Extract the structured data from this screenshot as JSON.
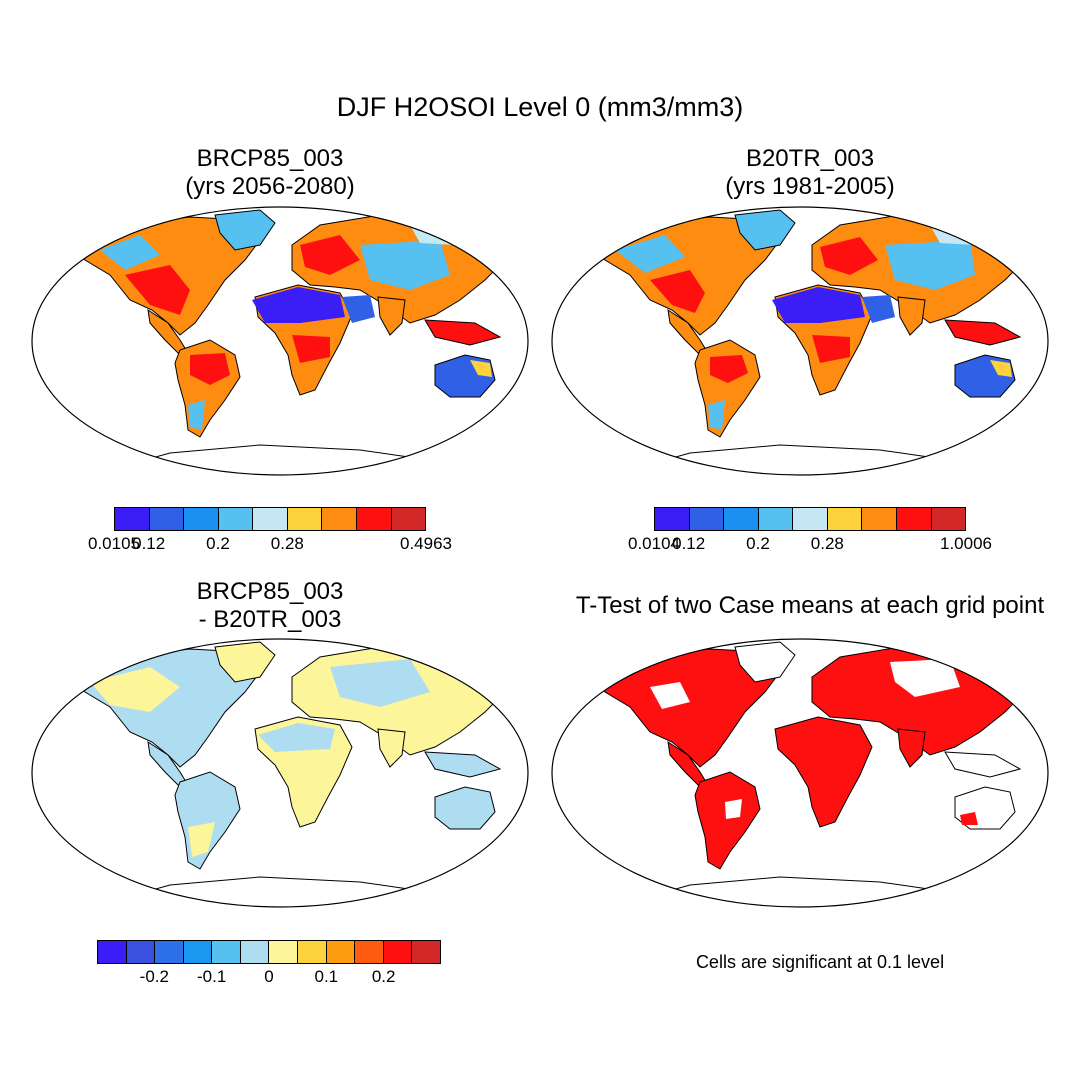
{
  "figure": {
    "title": "DJF H2OSOI Level 0 (mm3/mm3)",
    "significance_note": "Cells are significant at 0.1 level"
  },
  "panels": [
    {
      "id": "p1",
      "title_line1": "BRCP85_003",
      "title_line2": "(yrs 2056-2080)"
    },
    {
      "id": "p2",
      "title_line1": "B20TR_003",
      "title_line2": "(yrs 1981-2005)"
    },
    {
      "id": "p3",
      "title_line1": "BRCP85_003",
      "title_line2": "- B20TR_003"
    },
    {
      "id": "p4",
      "title_line1": "T-Test of two Case means at each grid point"
    }
  ],
  "colorbars": {
    "cb1": {
      "colors": [
        "#3a1ef5",
        "#3060e6",
        "#1a90f0",
        "#56c0f0",
        "#c6e8f5",
        "#fdd23c",
        "#fe8c10",
        "#fe1010",
        "#d32828"
      ],
      "labels": [
        "0.0105",
        "0.12",
        "0.2",
        "0.28",
        "0.4963"
      ],
      "label_slots": [
        0,
        1,
        3,
        5,
        9
      ]
    },
    "cb2": {
      "colors": [
        "#3a1ef5",
        "#3060e6",
        "#1a90f0",
        "#56c0f0",
        "#c6e8f5",
        "#fdd23c",
        "#fe8c10",
        "#fe1010",
        "#d32828"
      ],
      "labels": [
        "0.0104",
        "0.12",
        "0.2",
        "0.28",
        "1.0006"
      ],
      "label_slots": [
        0,
        1,
        3,
        5,
        9
      ]
    },
    "cb3": {
      "colors": [
        "#3a1ef5",
        "#3a50e0",
        "#2e70e8",
        "#1a98f0",
        "#56c0f0",
        "#aedcf0",
        "#fdf59a",
        "#fdd23c",
        "#fe9c10",
        "#fe5a10",
        "#fe1010",
        "#d32828"
      ],
      "labels": [
        "-0.2",
        "-0.1",
        "0",
        "0.1",
        "0.2"
      ],
      "label_slots": [
        2,
        4,
        6,
        8,
        10
      ]
    }
  },
  "colors": {
    "desert": "#3a1ef5",
    "dry": "#1a90f0",
    "moist": "#fe8c10",
    "wet": "#fe1010",
    "diff_neg": "#aedcf0",
    "diff_pos": "#fdf59a",
    "significant": "#fe1010",
    "map_outline": "#000000"
  }
}
